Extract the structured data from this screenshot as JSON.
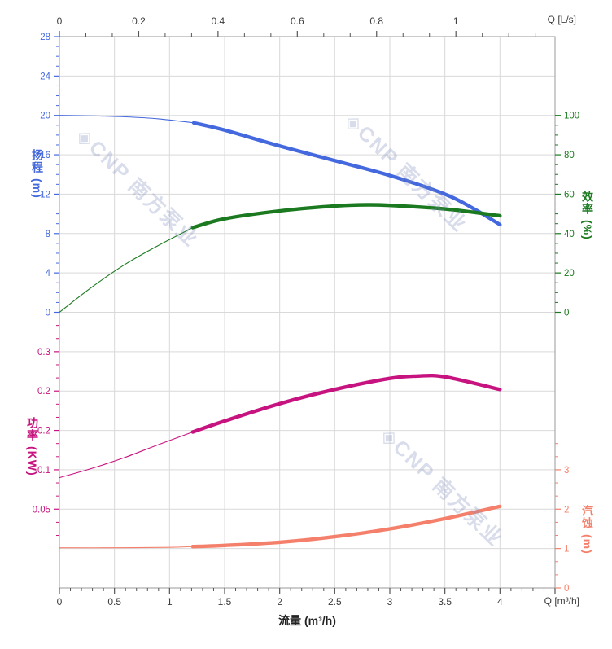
{
  "watermark": {
    "text": "◈CNP 南方泵业"
  },
  "chart_data": {
    "type": "line",
    "x_bottom": {
      "title": "流量 (m³/h)",
      "corner_label": "Q [m³/h]",
      "tick_labels": [
        "0",
        "0.5",
        "1",
        "1.5",
        "2",
        "2.5",
        "3",
        "3.5",
        "4"
      ],
      "tick_values": [
        0,
        0.5,
        1,
        1.5,
        2,
        2.5,
        3,
        3.5,
        4
      ],
      "range": [
        0,
        4.5
      ]
    },
    "x_top": {
      "corner_label": "Q [L/s]",
      "tick_labels": [
        "0",
        "0.2",
        "0.4",
        "0.6",
        "0.8",
        "1"
      ],
      "tick_values": [
        0,
        0.2,
        0.4,
        0.6,
        0.8,
        1
      ],
      "m3h_per_lps": 3.6
    },
    "y_head": {
      "title": "扬程",
      "unit": "(m)",
      "color": "#4468dd",
      "tick_labels": [
        "0",
        "4",
        "8",
        "12",
        "16",
        "20",
        "24",
        "28"
      ],
      "tick_values": [
        0,
        4,
        8,
        12,
        16,
        20,
        24,
        28
      ],
      "range": [
        0,
        28
      ]
    },
    "y_eff": {
      "title": "效率",
      "unit": "(%)",
      "color": "#1b7a1f",
      "tick_labels": [
        "0",
        "20",
        "40",
        "60",
        "80",
        "100"
      ],
      "tick_values": [
        0,
        20,
        40,
        60,
        80,
        100
      ],
      "range": [
        0,
        100
      ]
    },
    "y_power": {
      "title": "功率",
      "unit": "(KW)",
      "color": "#c7137f",
      "tick_labels": [
        "0.3",
        "0.2",
        "0.2",
        "0.1",
        "0.05"
      ],
      "top_value": 0.3,
      "step_value": 0.05
    },
    "y_npsh": {
      "title": "汽蚀",
      "unit": "(m)",
      "color": "#f4806c",
      "tick_labels": [
        "3",
        "2",
        "1",
        "0"
      ],
      "tick_values": [
        3,
        2,
        1,
        0
      ]
    },
    "series": [
      {
        "name": "head",
        "axis": "y_head",
        "color": "#4468dd",
        "split_q": 1.22,
        "points": [
          [
            0,
            20
          ],
          [
            0.3,
            19.95
          ],
          [
            0.6,
            19.85
          ],
          [
            0.9,
            19.65
          ],
          [
            1.22,
            19.25
          ],
          [
            1.5,
            18.5
          ],
          [
            2.0,
            16.9
          ],
          [
            2.5,
            15.4
          ],
          [
            3.0,
            13.9
          ],
          [
            3.5,
            12.0
          ],
          [
            3.75,
            10.6
          ],
          [
            4.0,
            8.9
          ]
        ]
      },
      {
        "name": "efficiency",
        "axis": "y_eff",
        "color": "#1b7a1f",
        "split_q": 1.21,
        "points": [
          [
            0,
            0
          ],
          [
            0.3,
            13
          ],
          [
            0.6,
            24.5
          ],
          [
            0.9,
            34
          ],
          [
            1.21,
            43
          ],
          [
            1.5,
            47.5
          ],
          [
            2.0,
            51.5
          ],
          [
            2.5,
            54
          ],
          [
            2.8,
            54.6
          ],
          [
            3.0,
            54.3
          ],
          [
            3.5,
            52.5
          ],
          [
            4.0,
            49
          ]
        ]
      },
      {
        "name": "power",
        "axis": "y_power",
        "color": "#c7137f",
        "split_q": 1.21,
        "points": [
          [
            0,
            0.14
          ],
          [
            0.3,
            0.152
          ],
          [
            0.6,
            0.166
          ],
          [
            0.9,
            0.182
          ],
          [
            1.21,
            0.198
          ],
          [
            1.5,
            0.212
          ],
          [
            2.0,
            0.234
          ],
          [
            2.5,
            0.252
          ],
          [
            3.0,
            0.266
          ],
          [
            3.25,
            0.269
          ],
          [
            3.5,
            0.268
          ],
          [
            4.0,
            0.252
          ]
        ]
      },
      {
        "name": "npsh",
        "axis": "y_npsh",
        "color": "#f4806c",
        "split_q": 1.21,
        "points": [
          [
            0,
            1.02
          ],
          [
            0.5,
            1.02
          ],
          [
            1.0,
            1.03
          ],
          [
            1.21,
            1.05
          ],
          [
            1.5,
            1.08
          ],
          [
            2.0,
            1.16
          ],
          [
            2.5,
            1.3
          ],
          [
            3.0,
            1.5
          ],
          [
            3.5,
            1.76
          ],
          [
            4.0,
            2.07
          ]
        ]
      }
    ]
  }
}
